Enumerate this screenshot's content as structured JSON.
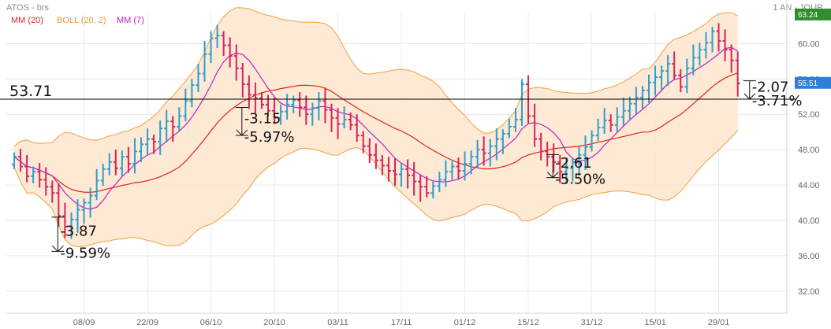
{
  "header": {
    "title": "ATOS - brs",
    "period": "1 AN - JOUR"
  },
  "legend": [
    {
      "label": "MM (20)",
      "color": "#e0241b"
    },
    {
      "label": "BOLL (20, 2)",
      "color": "#f0a040"
    },
    {
      "label": "MM (7)",
      "color": "#c020c0"
    }
  ],
  "badges": {
    "top": "63.24",
    "last": "55.51"
  },
  "chart_data": {
    "type": "ohlc",
    "ylim": [
      29.5,
      63.5
    ],
    "yticks": [
      32.0,
      36.0,
      40.0,
      44.0,
      48.0,
      52.0,
      56.0,
      60.0
    ],
    "ytick_labels": [
      "32.00",
      "36.00",
      "40.00",
      "44.00",
      "48.00",
      "52.00",
      "56.00",
      "60.00"
    ],
    "xticks": [
      {
        "i": 11,
        "label": "08/09"
      },
      {
        "i": 21,
        "label": "22/09"
      },
      {
        "i": 31,
        "label": "06/10"
      },
      {
        "i": 41,
        "label": "20/10"
      },
      {
        "i": 51,
        "label": "03/11"
      },
      {
        "i": 61,
        "label": "17/11"
      },
      {
        "i": 71,
        "label": "01/12"
      },
      {
        "i": 81,
        "label": "15/12"
      },
      {
        "i": 91,
        "label": "31/12"
      },
      {
        "i": 101,
        "label": "15/01"
      },
      {
        "i": 111,
        "label": "29/01"
      }
    ],
    "close": [
      47.2,
      46.1,
      45.0,
      45.5,
      44.6,
      43.8,
      43.1,
      40.5,
      39.3,
      40.1,
      41.2,
      42.0,
      42.8,
      44.5,
      45.8,
      46.6,
      45.9,
      47.2,
      46.4,
      47.8,
      48.6,
      49.2,
      48.9,
      50.4,
      51.2,
      50.6,
      51.8,
      53.5,
      55.3,
      56.6,
      58.8,
      60.6,
      60.9,
      59.8,
      58.6,
      57.2,
      55.4,
      54.2,
      53.8,
      53.1,
      52.4,
      51.6,
      52.3,
      53.1,
      53.6,
      52.8,
      52.0,
      52.7,
      53.5,
      52.5,
      51.6,
      50.9,
      51.4,
      50.8,
      49.6,
      48.4,
      47.4,
      46.8,
      46.2,
      45.6,
      45.2,
      45.8,
      45.1,
      44.4,
      43.8,
      43.1,
      43.9,
      44.6,
      45.5,
      46.1,
      45.6,
      46.4,
      47.2,
      48.0,
      47.6,
      48.4,
      49.2,
      49.8,
      50.6,
      51.4,
      55.4,
      51.8,
      49.2,
      47.8,
      47.2,
      46.6,
      45.5,
      45.9,
      46.6,
      47.4,
      48.3,
      49.6,
      50.5,
      51.3,
      50.8,
      51.7,
      52.4,
      53.2,
      53.9,
      54.7,
      55.6,
      56.2,
      56.9,
      57.7,
      56.4,
      55.1,
      57.2,
      58.4,
      59.3,
      60.1,
      61.4,
      60.3,
      59.3,
      58.1,
      55.5
    ],
    "levels": [
      {
        "value": 53.71,
        "label": "53.71"
      }
    ],
    "annotations": [
      {
        "i": 7,
        "from": 40.37,
        "to": 36.5,
        "change": "-3.87",
        "pct": "-9.59%"
      },
      {
        "i": 36,
        "from": 52.77,
        "to": 49.62,
        "change": "-3.15",
        "pct": "-5.97%"
      },
      {
        "i": 85,
        "from": 47.45,
        "to": 44.84,
        "change": "-2.61",
        "pct": "-5.50%"
      },
      {
        "i": 116,
        "from": 55.79,
        "to": 53.72,
        "change": "-2.07",
        "pct": "-3.71%"
      }
    ]
  }
}
